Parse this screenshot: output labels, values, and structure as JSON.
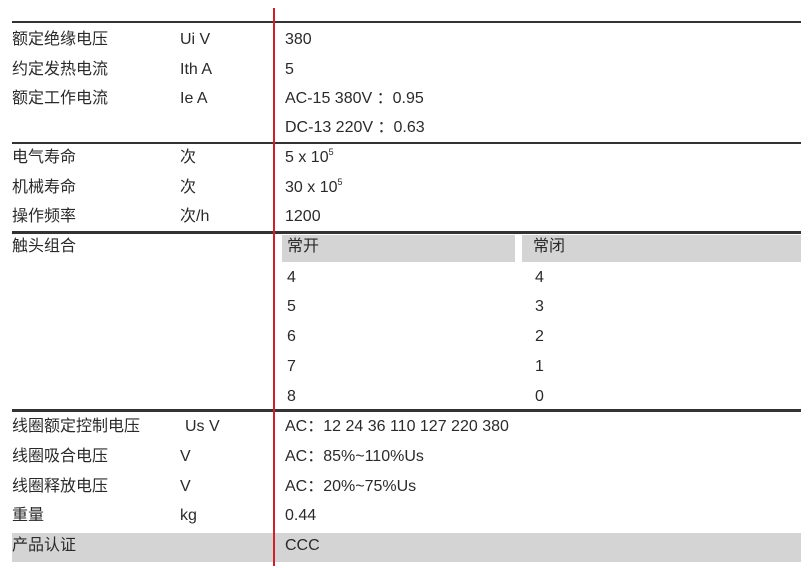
{
  "colors": {
    "divider": "#d0202a",
    "rule": "#333333",
    "shade": "#d4d4d4"
  },
  "group1": [
    {
      "label": "额定绝缘电压",
      "unit": "Ui V",
      "value": "380"
    },
    {
      "label": "约定发热电流",
      "unit": "Ith A",
      "value": "5"
    },
    {
      "label": "额定工作电流",
      "unit": "Ie A",
      "value": "AC-15 380V ：0.95"
    },
    {
      "label": "",
      "unit": "",
      "value": "DC-13 220V ：0.63"
    }
  ],
  "group2": [
    {
      "label": "电气寿命",
      "unit": "次",
      "value": "5 x 10",
      "exp": "5"
    },
    {
      "label": "机械寿命",
      "unit": "次",
      "value": "30 x 10",
      "exp": "5"
    },
    {
      "label": "操作频率",
      "unit": "次/h",
      "value": "1200"
    }
  ],
  "contacts": {
    "label": "触头组合",
    "header_no": "常开",
    "header_nc": "常闭",
    "rows": [
      [
        "4",
        "4"
      ],
      [
        "5",
        "3"
      ],
      [
        "6",
        "2"
      ],
      [
        "7",
        "1"
      ],
      [
        "8",
        "0"
      ]
    ]
  },
  "group4": [
    {
      "label": "线圈额定控制电压",
      "unit": "Us V",
      "value": "AC：12 24 36 110 127 220 380"
    },
    {
      "label": "线圈吸合电压",
      "unit": "V",
      "value": "AC：85%~110%Us"
    },
    {
      "label": "线圈释放电压",
      "unit": "V",
      "value": "AC：20%~75%Us"
    },
    {
      "label": "重量",
      "unit": "kg",
      "value": "0.44"
    },
    {
      "label": "产品认证",
      "unit": "",
      "value": "CCC"
    }
  ]
}
